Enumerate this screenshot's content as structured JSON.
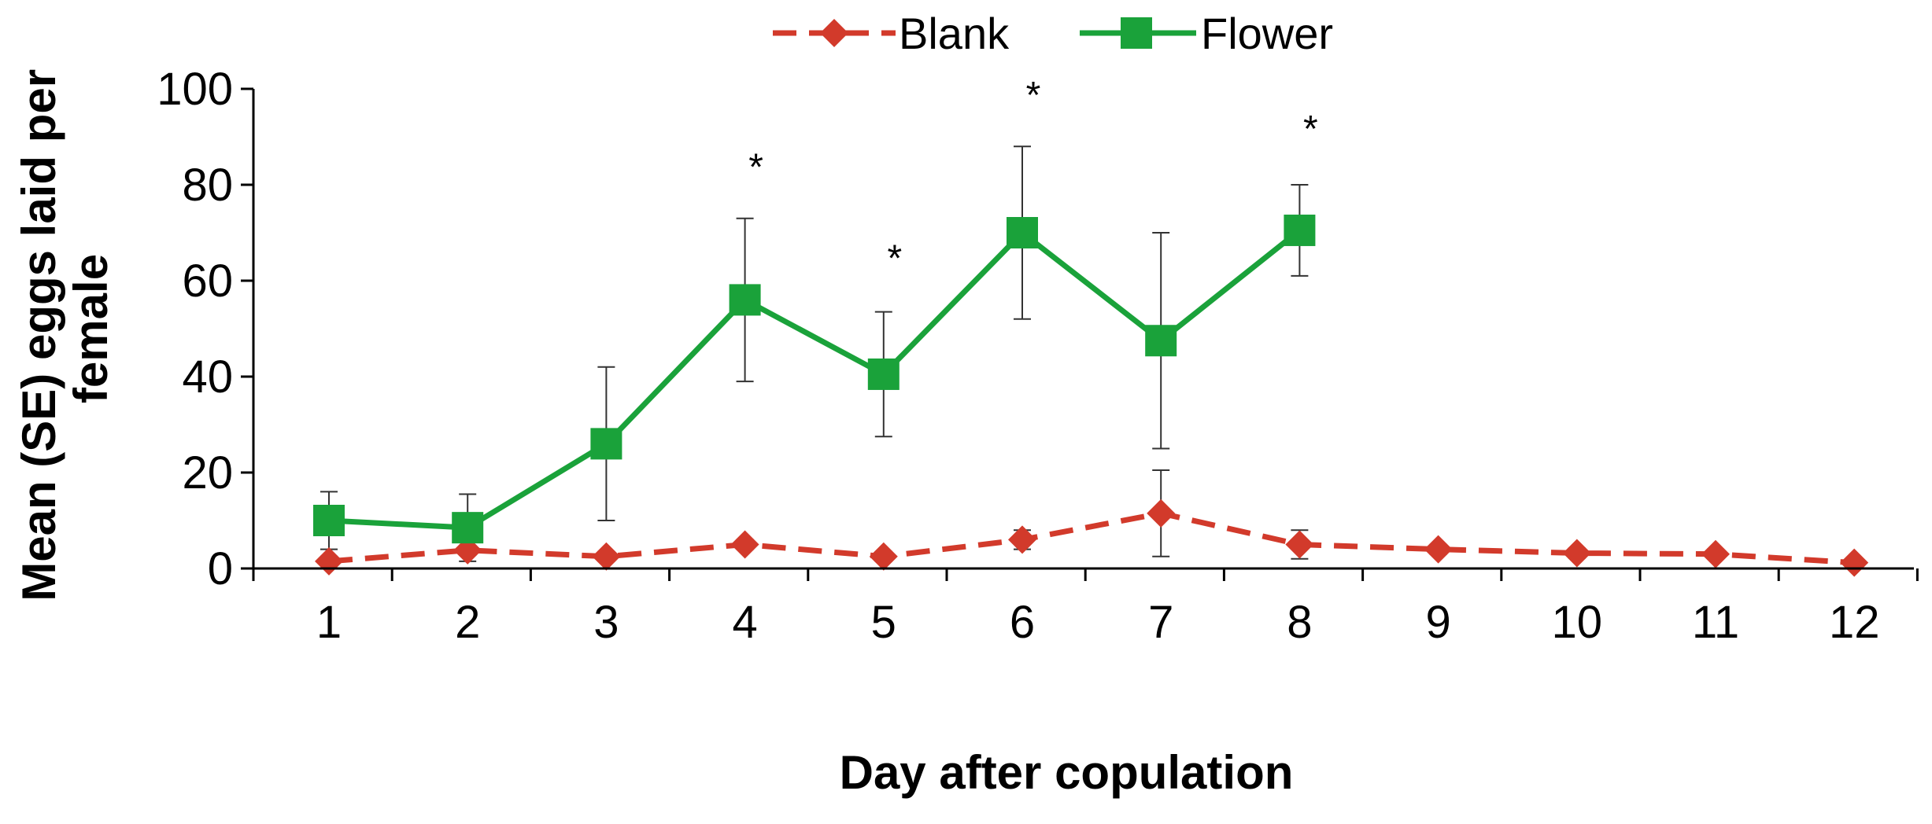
{
  "chart_data": {
    "type": "line",
    "title": "",
    "xlabel": "Day after copulation",
    "ylabel": "Mean (SE) eggs laid per female",
    "ylabel_lines": [
      "Mean (SE) eggs laid per",
      "female"
    ],
    "categories": [
      "1",
      "2",
      "3",
      "4",
      "5",
      "6",
      "7",
      "8",
      "9",
      "10",
      "11",
      "12"
    ],
    "ylim": [
      0,
      100
    ],
    "yticks": [
      "0",
      "20",
      "40",
      "60",
      "80",
      "100"
    ],
    "grid": false,
    "legend_position": "top-center",
    "series": [
      {
        "name": "Blank",
        "color": "#d23a2b",
        "marker": "diamond",
        "line_style": "dashed",
        "values": [
          1.5,
          3.8,
          2.5,
          5,
          2.5,
          6,
          11.5,
          5,
          4,
          3.2,
          3,
          1.2
        ],
        "error": [
          1,
          1,
          1,
          1,
          1,
          2,
          9,
          3,
          1,
          1,
          1,
          0.5
        ]
      },
      {
        "name": "Flower",
        "color": "#1aa23a",
        "marker": "square",
        "line_style": "solid",
        "values": [
          10,
          8.5,
          26,
          56,
          40.5,
          70,
          47.5,
          70.5,
          null,
          null,
          null,
          null
        ],
        "error": [
          6,
          7,
          16,
          17,
          13,
          18,
          22.5,
          9.5,
          null,
          null,
          null,
          null
        ]
      }
    ],
    "annotations": [
      {
        "category": "4",
        "y": 84,
        "text": "*"
      },
      {
        "category": "5",
        "y": 65,
        "text": "*"
      },
      {
        "category": "6",
        "y": 99,
        "text": "*"
      },
      {
        "category": "8",
        "y": 92,
        "text": "*"
      }
    ]
  }
}
